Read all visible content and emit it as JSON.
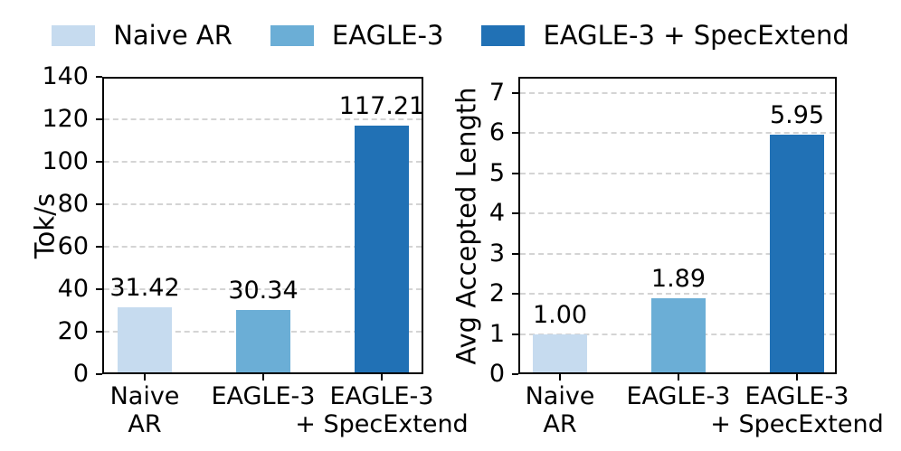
{
  "figure": {
    "background": "#ffffff"
  },
  "legend": {
    "position": "top-center, horizontal, no frame",
    "items": [
      {
        "label": "Naive AR",
        "color": "#c6dbef"
      },
      {
        "label": "EAGLE-3",
        "color": "#6baed6"
      },
      {
        "label": "EAGLE-3 + SpecExtend",
        "color": "#2171b5"
      }
    ]
  },
  "chart_data": [
    {
      "type": "bar",
      "title": "",
      "ylabel": "Tok/s",
      "xlabel": "",
      "categories": [
        "Naive\nAR",
        "EAGLE-3",
        "EAGLE-3\n+ SpecExtend"
      ],
      "values": [
        31.42,
        30.34,
        117.21
      ],
      "value_labels": [
        "31.42",
        "30.34",
        "117.21"
      ],
      "bar_colors": [
        "#c6dbef",
        "#6baed6",
        "#2171b5"
      ],
      "ylim": [
        0,
        140
      ],
      "yticks": [
        0,
        20,
        40,
        60,
        80,
        100,
        120,
        140
      ],
      "grid": "horizontal dashed gray at each y tick",
      "spines": "full box, black"
    },
    {
      "type": "bar",
      "title": "",
      "ylabel": "Avg Accepted Length",
      "xlabel": "",
      "categories": [
        "Naive\nAR",
        "EAGLE-3",
        "EAGLE-3\n+ SpecExtend"
      ],
      "values": [
        1.0,
        1.89,
        5.95
      ],
      "value_labels": [
        "1.00",
        "1.89",
        "5.95"
      ],
      "bar_colors": [
        "#c6dbef",
        "#6baed6",
        "#2171b5"
      ],
      "ylim": [
        0,
        7.4
      ],
      "yticks": [
        0,
        1,
        2,
        3,
        4,
        5,
        6,
        7
      ],
      "grid": "horizontal dashed gray at each y tick",
      "spines": "full box, black"
    }
  ]
}
